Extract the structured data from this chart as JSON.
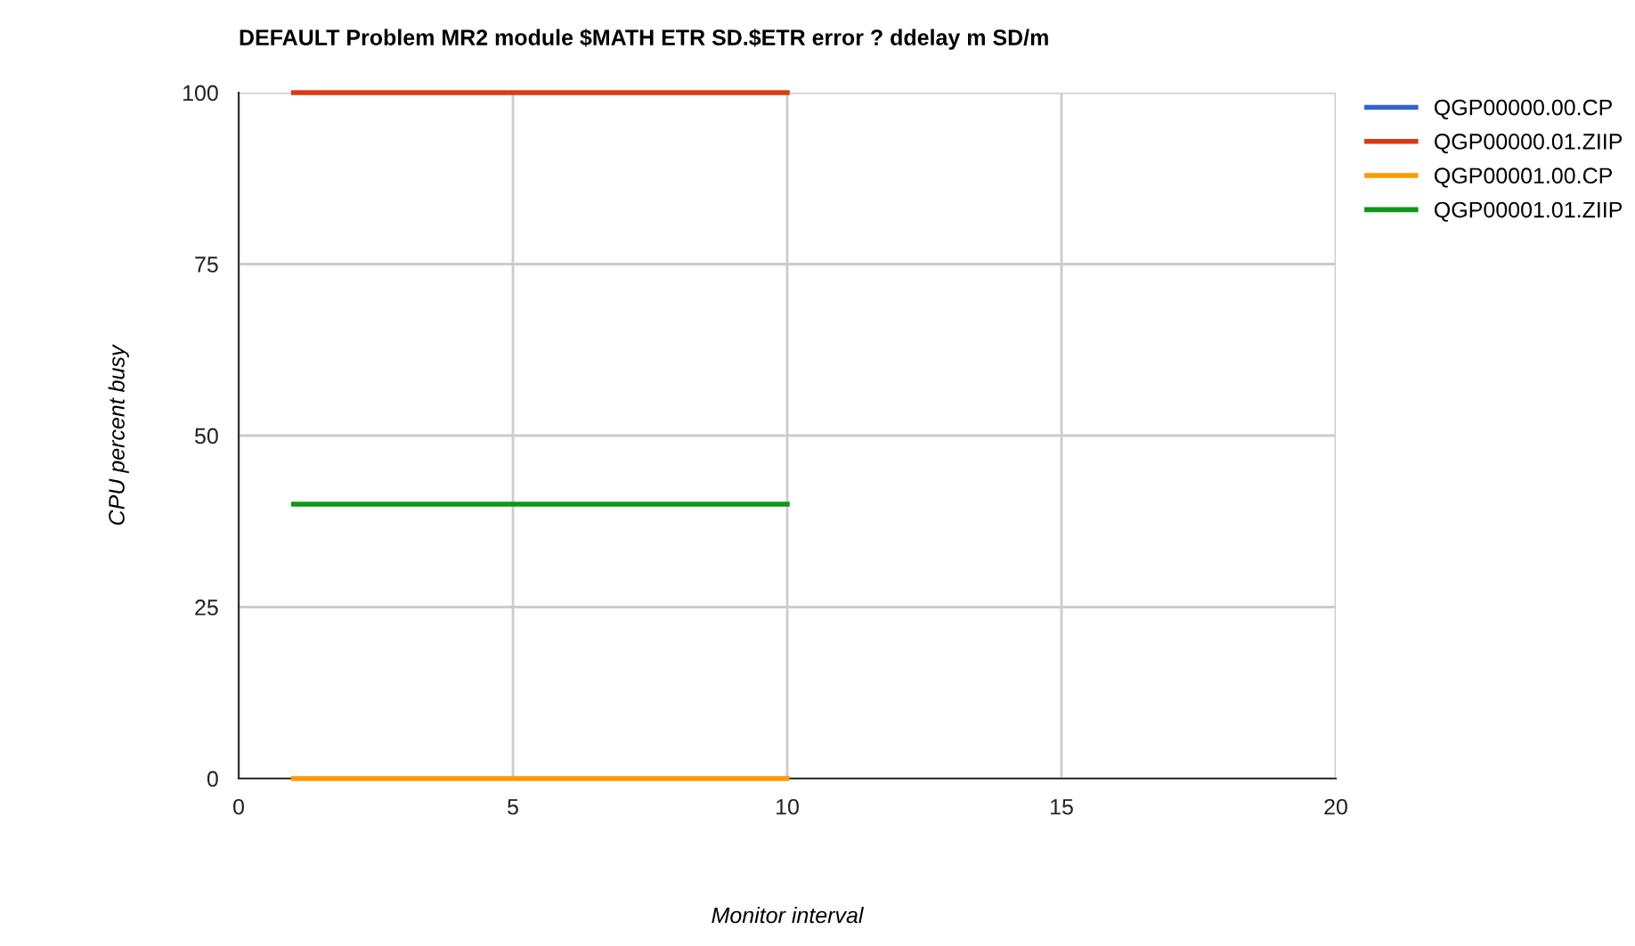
{
  "chart_data": {
    "type": "line",
    "title": "DEFAULT Problem MR2 module $MATH ETR SD.$ETR error ? ddelay m SD/m",
    "xlabel": "Monitor interval",
    "ylabel": "CPU percent busy",
    "x": [
      1,
      10
    ],
    "series": [
      {
        "name": "QGP00000.00.CP",
        "color": "#3366cc",
        "values": [
          null,
          null
        ]
      },
      {
        "name": "QGP00000.01.ZIIP",
        "color": "#dc3912",
        "values": [
          100,
          100
        ]
      },
      {
        "name": "QGP00001.00.CP",
        "color": "#ff9900",
        "values": [
          0,
          0
        ]
      },
      {
        "name": "QGP00001.01.ZIIP",
        "color": "#109618",
        "values": [
          40,
          40
        ]
      }
    ],
    "xlim": [
      0,
      20
    ],
    "xticks": [
      0,
      5,
      10,
      15,
      20
    ],
    "ylim": [
      0,
      100
    ],
    "yticks": [
      0,
      25,
      50,
      75,
      100
    ],
    "grid": true,
    "legend": "top right",
    "marker": "none",
    "line_style": "solid"
  }
}
